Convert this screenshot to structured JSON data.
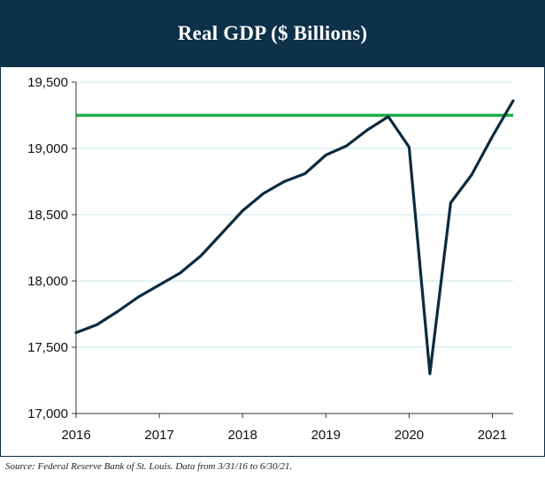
{
  "colors": {
    "header_bg": "#0c3149",
    "line": "#0c2b40",
    "reference_line": "#1fae4a",
    "grid": "#c9e6ee",
    "axis": "#333333"
  },
  "chart_data": {
    "type": "line",
    "title": "Real GDP ($ Billions)",
    "xlabel": "",
    "ylabel": "",
    "xlim": [
      2016,
      2021.25
    ],
    "ylim": [
      17000,
      19500
    ],
    "y_ticks": [
      17000,
      17500,
      18000,
      18500,
      19000,
      19500
    ],
    "y_tick_labels": [
      "17,000",
      "17,500",
      "18,000",
      "18,500",
      "19,000",
      "19,500"
    ],
    "x_ticks": [
      2016,
      2017,
      2018,
      2019,
      2020,
      2021
    ],
    "x_tick_labels": [
      "2016",
      "2017",
      "2018",
      "2019",
      "2020",
      "2021"
    ],
    "grid": true,
    "reference_line": {
      "y": 19250,
      "label": ""
    },
    "series": [
      {
        "name": "Real GDP",
        "x": [
          2016,
          2016.25,
          2016.5,
          2016.75,
          2017,
          2017.25,
          2017.5,
          2017.75,
          2018,
          2018.25,
          2018.5,
          2018.75,
          2019,
          2019.25,
          2019.5,
          2019.75,
          2020,
          2020.25,
          2020.5,
          2020.75,
          2021,
          2021.25
        ],
        "values": [
          17610,
          17670,
          17770,
          17880,
          17970,
          18060,
          18190,
          18360,
          18530,
          18660,
          18750,
          18810,
          18950,
          19020,
          19140,
          19240,
          19010,
          17300,
          18590,
          18800,
          19090,
          19360
        ]
      }
    ]
  },
  "footer": {
    "source": "Source: Federal Reserve Bank of St. Louis. Data from 3/31/16 to 6/30/21."
  }
}
